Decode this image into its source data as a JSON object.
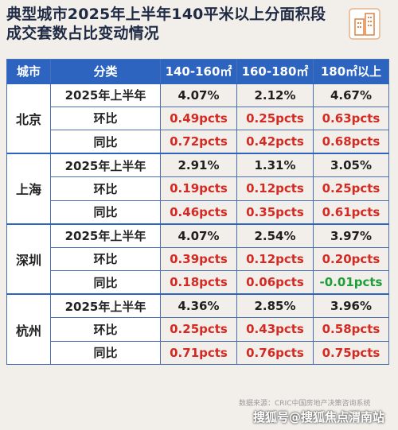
{
  "title": "典型城市2025年上半年140平米以上分面积段成交套数占比变动情况",
  "colors": {
    "header_bg": "#2d64c0",
    "positive": "#d42a24",
    "negative": "#1d9e3a",
    "border": "#4a6fb5"
  },
  "table": {
    "headers": [
      "城市",
      "分类",
      "140-160㎡",
      "160-180㎡",
      "180㎡以上"
    ],
    "groups": [
      {
        "city": "北京",
        "rows": [
          {
            "cat": "2025年上半年",
            "v": [
              "4.07%",
              "2.12%",
              "4.67%"
            ]
          },
          {
            "cat": "环比",
            "v": [
              "0.49pcts",
              "0.25pcts",
              "0.63pcts"
            ]
          },
          {
            "cat": "同比",
            "v": [
              "0.72pcts",
              "0.42pcts",
              "0.68pcts"
            ]
          }
        ]
      },
      {
        "city": "上海",
        "rows": [
          {
            "cat": "2025年上半年",
            "v": [
              "2.91%",
              "1.31%",
              "3.05%"
            ]
          },
          {
            "cat": "环比",
            "v": [
              "0.19pcts",
              "0.12pcts",
              "0.25pcts"
            ]
          },
          {
            "cat": "同比",
            "v": [
              "0.46pcts",
              "0.35pcts",
              "0.61pcts"
            ]
          }
        ]
      },
      {
        "city": "深圳",
        "rows": [
          {
            "cat": "2025年上半年",
            "v": [
              "4.07%",
              "2.54%",
              "3.97%"
            ]
          },
          {
            "cat": "环比",
            "v": [
              "0.39pcts",
              "0.12pcts",
              "0.20pcts"
            ]
          },
          {
            "cat": "同比",
            "v": [
              "0.18pcts",
              "0.06pcts",
              "-0.01pcts"
            ]
          }
        ]
      },
      {
        "city": "杭州",
        "rows": [
          {
            "cat": "2025年上半年",
            "v": [
              "4.36%",
              "2.85%",
              "3.96%"
            ]
          },
          {
            "cat": "环比",
            "v": [
              "0.25pcts",
              "0.43pcts",
              "0.58pcts"
            ]
          },
          {
            "cat": "同比",
            "v": [
              "0.71pcts",
              "0.76pcts",
              "0.75pcts"
            ]
          }
        ]
      }
    ]
  },
  "footer": {
    "source": "数据来源：CRIC中国房地产决策咨询系统",
    "watermark": "搜狐号@搜狐焦点渭南站"
  },
  "icons": {
    "logo": "building-logo-icon"
  }
}
